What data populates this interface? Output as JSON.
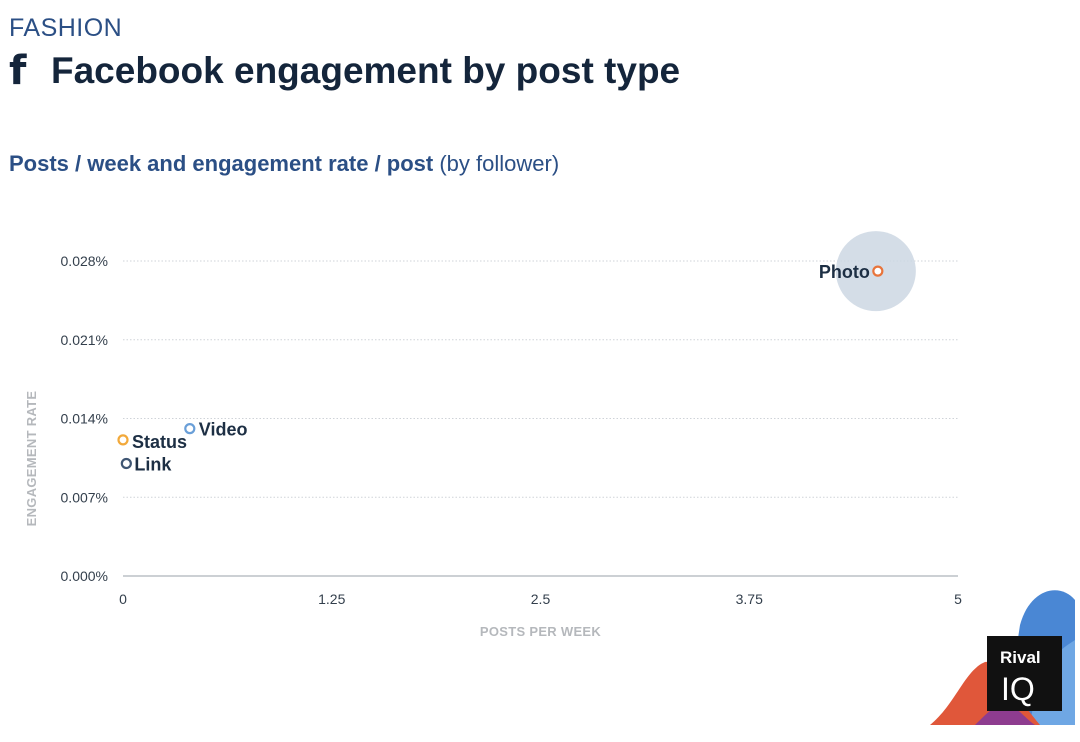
{
  "header": {
    "category": "FASHION",
    "icon": "facebook-icon",
    "icon_glyph": "f",
    "title": "Facebook engagement by post type",
    "subtitle_strong": "Posts / week and engagement rate / post",
    "subtitle_light": " (by follower)"
  },
  "brand": {
    "line1": "Rival",
    "line2": "IQ"
  },
  "chart_data": {
    "type": "scatter",
    "xlabel": "POSTS PER WEEK",
    "ylabel": "ENGAGEMENT RATE",
    "xlim": [
      0,
      5
    ],
    "ylim": [
      0,
      0.028
    ],
    "x_ticks": [
      0,
      1.25,
      2.5,
      3.75,
      5
    ],
    "x_tick_labels": [
      "0",
      "1.25",
      "2.5",
      "3.75",
      "5"
    ],
    "y_ticks": [
      0,
      0.007,
      0.014,
      0.021,
      0.028
    ],
    "y_tick_labels": [
      "0.000%",
      "0.007%",
      "0.014%",
      "0.021%",
      "0.028%"
    ],
    "grid": true,
    "points": [
      {
        "label": "Photo",
        "x": 4.52,
        "y": 0.0271,
        "color": "#e8743b",
        "highlight": true
      },
      {
        "label": "Video",
        "x": 0.4,
        "y": 0.0131,
        "color": "#6a9fd8"
      },
      {
        "label": "Status",
        "x": 0.0,
        "y": 0.0121,
        "color": "#f2a93b"
      },
      {
        "label": "Link",
        "x": 0.02,
        "y": 0.01,
        "color": "#3f5673"
      }
    ]
  },
  "colors": {
    "title": "#14253b",
    "subtitle": "#2b4f85",
    "highlight_bubble": "#ccd7e3"
  }
}
